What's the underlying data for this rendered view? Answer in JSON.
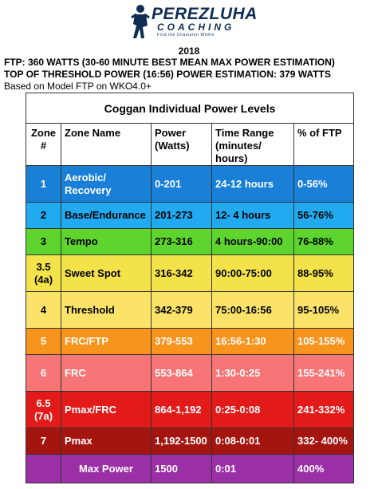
{
  "brand": {
    "name": "PEREZLUHA",
    "sub": "COACHING",
    "tagline": "Find the Champion Within"
  },
  "header": {
    "year": "2018",
    "line1": "FTP: 360 WATTS (30-60 MINUTE BEST MEAN MAX POWER ESTIMATION)",
    "line2": "TOP OF THRESHOLD POWER (16:56) POWER ESTIMATION: 379 WATTS",
    "line3": "Based on Model FTP on WKO4.0+"
  },
  "table": {
    "title": "Coggan Individual Power Levels",
    "columns": [
      [
        "Zone",
        "#"
      ],
      [
        "Zone Name"
      ],
      [
        "Power",
        "(Watts)"
      ],
      [
        "Time Range",
        "(minutes/",
        "hours)"
      ],
      [
        "% of FTP"
      ]
    ],
    "rows": [
      {
        "zone": [
          "1"
        ],
        "name": [
          "Aerobic/",
          "Recovery"
        ],
        "power": "0-201",
        "time": "24-12 hours",
        "pct": "0-56%",
        "color": "#1a7fd6",
        "text": "#ffffff"
      },
      {
        "zone": [
          "2"
        ],
        "name": [
          "Base/Endurance"
        ],
        "power": "201-273",
        "time": "12- 4 hours",
        "pct": "56-76%",
        "color": "#22aaf0",
        "text": "#000000"
      },
      {
        "zone": [
          "3"
        ],
        "name": [
          "Tempo"
        ],
        "power": "273-316",
        "time": "4 hours-90:00",
        "pct": "76-88%",
        "color": "#5ed42e",
        "text": "#000000"
      },
      {
        "zone": [
          "3.5",
          "(4a)"
        ],
        "name": [
          "Sweet Spot"
        ],
        "power": "316-342",
        "time": "90:00-75:00",
        "pct": "88-95%",
        "color": "#f4e24a",
        "text": "#000000"
      },
      {
        "zone": [
          "4"
        ],
        "name": [
          "Threshold"
        ],
        "power": "342-379",
        "time": "75:00-16:56",
        "pct": "95-105%",
        "color": "#fbe36a",
        "text": "#000000"
      },
      {
        "zone": [
          "5"
        ],
        "name": [
          "FRC/FTP"
        ],
        "power": "379-553",
        "time": "16:56-1:30",
        "pct": "105-155%",
        "color": "#f7941e",
        "text": "#ffffff"
      },
      {
        "zone": [
          "6"
        ],
        "name": [
          "FRC"
        ],
        "power": "553-864",
        "time": "1:30-0:25",
        "pct": "155-241%",
        "color": "#f77577",
        "text": "#ffffff"
      },
      {
        "zone": [
          "6.5",
          "(7a)"
        ],
        "name": [
          "Pmax/FRC"
        ],
        "power": "864-1,192",
        "time": "0:25-0:08",
        "pct": "241-332%",
        "color": "#e21a1a",
        "text": "#ffffff"
      },
      {
        "zone": [
          "7"
        ],
        "name": [
          "Pmax"
        ],
        "power": "1,192-1500",
        "time": "0:08-0:01",
        "pct": "332- 400%",
        "color": "#a51510",
        "text": "#ffffff"
      },
      {
        "zone": [
          ""
        ],
        "name": [
          "Max Power"
        ],
        "power": "1500",
        "time": "0:01",
        "pct": "400%",
        "color": "#9b2fa6",
        "text": "#ffffff"
      }
    ]
  }
}
